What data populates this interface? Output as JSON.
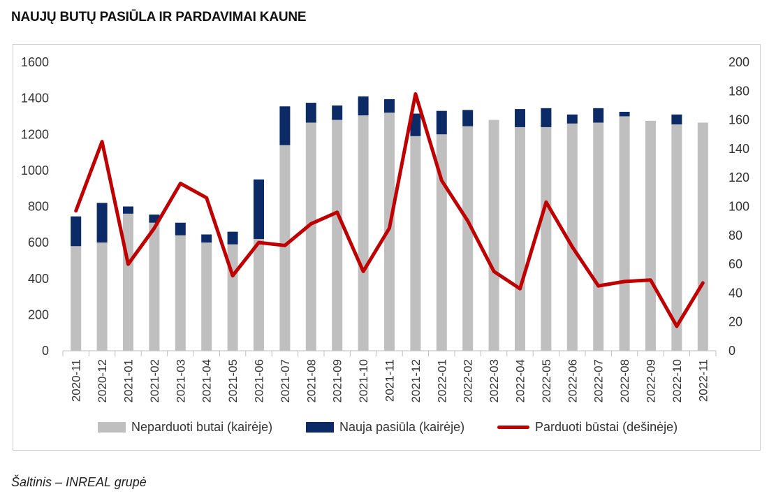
{
  "title": "NAUJŲ BUTŲ PASIŪLA IR PARDAVIMAI KAUNE",
  "source": "Šaltinis – INREAL grupė",
  "colors": {
    "unsold": "#bfbfbf",
    "new_supply": "#0b2a66",
    "sold": "#c00000"
  },
  "chart_data": {
    "type": "bar",
    "stacked": true,
    "categories": [
      "2020-11",
      "2020-12",
      "2021-01",
      "2021-02",
      "2021-03",
      "2021-04",
      "2021-05",
      "2021-06",
      "2021-07",
      "2021-08",
      "2021-09",
      "2021-10",
      "2021-11",
      "2021-12",
      "2022-01",
      "2022-02",
      "2022-03",
      "2022-04",
      "2022-05",
      "2022-06",
      "2022-07",
      "2022-08",
      "2022-09",
      "2022-10",
      "2022-11"
    ],
    "series": [
      {
        "name": "Neparduoti butai (kairėje)",
        "type": "bar",
        "axis": "left",
        "values": [
          580,
          600,
          760,
          710,
          640,
          600,
          590,
          620,
          1140,
          1265,
          1280,
          1305,
          1320,
          1190,
          1200,
          1245,
          1280,
          1240,
          1240,
          1260,
          1265,
          1300,
          1275,
          1255,
          1265
        ]
      },
      {
        "name": "Nauja pasiūla (kairėje)",
        "type": "bar",
        "axis": "left",
        "values": [
          165,
          220,
          40,
          45,
          70,
          45,
          70,
          330,
          215,
          110,
          80,
          105,
          75,
          125,
          130,
          90,
          0,
          100,
          105,
          50,
          80,
          25,
          0,
          55,
          0
        ]
      },
      {
        "name": "Parduoti būstai (dešinėje)",
        "type": "line",
        "axis": "right",
        "values": [
          97,
          145,
          60,
          85,
          116,
          106,
          52,
          75,
          73,
          88,
          96,
          55,
          85,
          178,
          118,
          90,
          55,
          43,
          103,
          72,
          45,
          48,
          49,
          17,
          47
        ]
      }
    ],
    "yleft": {
      "lim": [
        0,
        1600
      ],
      "ticks": [
        "0",
        "200",
        "400",
        "600",
        "800",
        "1000",
        "1200",
        "1400",
        "1600"
      ]
    },
    "yright": {
      "lim": [
        0,
        200
      ],
      "ticks": [
        "0",
        "20",
        "40",
        "60",
        "80",
        "100",
        "120",
        "140",
        "160",
        "180",
        "200"
      ]
    },
    "grid": false,
    "legend": "bottom"
  }
}
